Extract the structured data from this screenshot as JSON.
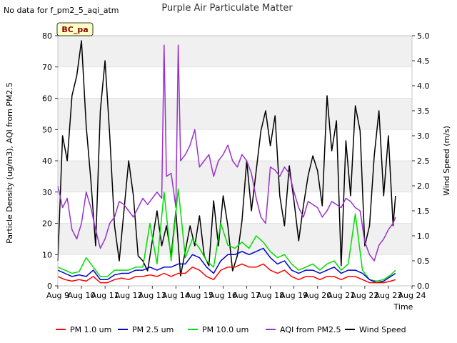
{
  "no_data_note": "No data for f_pm2_5_aqi_atm",
  "chart_data": {
    "type": "line",
    "title": "Purple Air Particulate Matter",
    "badge": "BC_pa",
    "xlabel": "Time",
    "ylabel_left": "Particle Density (ug/m3), AQI from PM2.5",
    "ylabel_right": "Wind Speed (m/s)",
    "x_ticks": [
      "Aug 9",
      "Aug 10",
      "Aug 11",
      "Aug 12",
      "Aug 13",
      "Aug 14",
      "Aug 15",
      "Aug 16",
      "Aug 17",
      "Aug 18",
      "Aug 19",
      "Aug 20",
      "Aug 21",
      "Aug 22",
      "Aug 23",
      "Aug 24"
    ],
    "xlim": [
      9,
      24
    ],
    "ylim_left": [
      0,
      80
    ],
    "yticks_left": [
      0,
      10,
      20,
      30,
      40,
      50,
      60,
      70,
      80
    ],
    "ylim_right": [
      0.0,
      5.0
    ],
    "yticks_right": [
      "0.0",
      "0.5",
      "1.0",
      "1.5",
      "2.0",
      "2.5",
      "3.0",
      "3.5",
      "4.0",
      "4.5",
      "5.0"
    ],
    "grid": true,
    "legend_position": "bottom",
    "series": [
      {
        "name": "PM 1.0 um",
        "color": "#ff0000",
        "axis": "left",
        "x": [
          9.0,
          9.3,
          9.6,
          9.9,
          10.2,
          10.5,
          10.8,
          11.1,
          11.4,
          11.7,
          12.0,
          12.3,
          12.6,
          12.9,
          13.2,
          13.5,
          13.8,
          14.1,
          14.4,
          14.7,
          15.0,
          15.3,
          15.6,
          15.9,
          16.2,
          16.5,
          16.8,
          17.1,
          17.4,
          17.7,
          18.0,
          18.3,
          18.6,
          18.9,
          19.2,
          19.5,
          19.8,
          20.1,
          20.4,
          20.7,
          21.0,
          21.3,
          21.6,
          21.9,
          22.2,
          22.5,
          22.8,
          23.1,
          23.3
        ],
        "values": [
          3,
          2,
          1.5,
          2,
          1.5,
          3,
          1,
          1,
          2,
          2.5,
          2,
          3,
          3,
          3.5,
          3,
          4,
          3,
          4,
          4,
          6,
          5,
          3,
          2,
          5,
          6,
          6,
          7,
          6,
          6,
          7,
          5,
          4,
          5,
          3,
          2,
          3,
          3,
          2,
          3,
          3,
          2,
          3,
          3,
          2,
          1,
          1,
          1,
          1.5,
          2
        ]
      },
      {
        "name": "PM 2.5 um",
        "color": "#0000cc",
        "axis": "left",
        "x": [
          9.0,
          9.3,
          9.6,
          9.9,
          10.2,
          10.5,
          10.8,
          11.1,
          11.4,
          11.7,
          12.0,
          12.3,
          12.6,
          12.9,
          13.2,
          13.5,
          13.8,
          14.1,
          14.4,
          14.7,
          15.0,
          15.3,
          15.6,
          15.9,
          16.2,
          16.5,
          16.8,
          17.1,
          17.4,
          17.7,
          18.0,
          18.3,
          18.6,
          18.9,
          19.2,
          19.5,
          19.8,
          20.1,
          20.4,
          20.7,
          21.0,
          21.3,
          21.6,
          21.9,
          22.2,
          22.5,
          22.8,
          23.1,
          23.3
        ],
        "values": [
          5,
          4,
          3,
          3.5,
          3,
          5,
          2,
          2,
          3.5,
          4,
          4,
          5,
          5,
          6,
          5,
          6,
          6,
          7,
          7,
          10,
          9,
          6,
          4,
          8,
          10,
          10,
          11,
          10,
          11,
          12,
          9,
          7,
          8,
          5,
          4,
          5,
          5,
          4,
          5,
          6,
          4,
          5,
          5,
          4,
          2,
          1,
          1.5,
          3,
          4
        ]
      },
      {
        "name": "PM 10.0 um",
        "color": "#00dd00",
        "axis": "left",
        "x": [
          9.0,
          9.3,
          9.6,
          9.9,
          10.2,
          10.5,
          10.8,
          11.1,
          11.4,
          11.7,
          12.0,
          12.3,
          12.6,
          12.9,
          13.2,
          13.5,
          13.8,
          14.1,
          14.4,
          14.7,
          15.0,
          15.3,
          15.6,
          15.9,
          16.2,
          16.5,
          16.8,
          17.1,
          17.4,
          17.7,
          18.0,
          18.3,
          18.6,
          18.9,
          19.2,
          19.5,
          19.8,
          20.1,
          20.4,
          20.7,
          21.0,
          21.3,
          21.6,
          21.9,
          22.2,
          22.5,
          22.8,
          23.1,
          23.3
        ],
        "values": [
          6,
          5,
          4,
          4.5,
          9,
          6,
          3,
          3,
          5,
          5,
          5,
          6,
          6,
          20,
          7,
          30,
          8,
          31,
          9,
          15,
          12,
          8,
          6,
          20,
          13,
          12,
          14,
          12,
          16,
          14,
          11,
          9,
          10,
          7,
          5,
          6,
          7,
          5,
          7,
          8,
          5,
          7,
          23,
          5,
          2,
          1.5,
          2,
          3.5,
          5
        ]
      },
      {
        "name": "AQI from PM2.5",
        "color": "#9932cc",
        "axis": "left",
        "x": [
          9.0,
          9.2,
          9.4,
          9.6,
          9.8,
          10.0,
          10.2,
          10.4,
          10.6,
          10.8,
          11.0,
          11.2,
          11.4,
          11.6,
          11.8,
          12.0,
          12.2,
          12.4,
          12.6,
          12.8,
          13.0,
          13.2,
          13.4,
          13.5,
          13.6,
          13.8,
          14.0,
          14.1,
          14.2,
          14.4,
          14.6,
          14.8,
          15.0,
          15.2,
          15.4,
          15.6,
          15.8,
          16.0,
          16.2,
          16.4,
          16.6,
          16.8,
          17.0,
          17.2,
          17.4,
          17.6,
          17.8,
          18.0,
          18.2,
          18.4,
          18.6,
          18.8,
          19.0,
          19.2,
          19.4,
          19.6,
          19.8,
          20.0,
          20.2,
          20.4,
          20.6,
          20.8,
          21.0,
          21.2,
          21.4,
          21.6,
          21.8,
          22.0,
          22.2,
          22.4,
          22.6,
          22.8,
          23.0,
          23.2,
          23.3
        ],
        "values": [
          32,
          25,
          28,
          18,
          15,
          20,
          30,
          25,
          18,
          12,
          15,
          20,
          22,
          27,
          26,
          24,
          22,
          25,
          28,
          26,
          28,
          30,
          28,
          77,
          35,
          36,
          25,
          77,
          40,
          42,
          45,
          50,
          38,
          40,
          42,
          35,
          40,
          42,
          45,
          40,
          38,
          42,
          40,
          36,
          28,
          22,
          20,
          38,
          37,
          35,
          38,
          36,
          30,
          25,
          22,
          27,
          26,
          25,
          22,
          24,
          27,
          26,
          25,
          28,
          27,
          25,
          24,
          14,
          10,
          8,
          13,
          15,
          18,
          20,
          22
        ]
      },
      {
        "name": "Wind Speed",
        "color": "#000000",
        "axis": "right",
        "x": [
          9.0,
          9.2,
          9.4,
          9.6,
          9.8,
          10.0,
          10.2,
          10.4,
          10.6,
          10.8,
          11.0,
          11.2,
          11.4,
          11.6,
          11.8,
          12.0,
          12.2,
          12.4,
          12.6,
          12.8,
          13.0,
          13.2,
          13.4,
          13.6,
          13.8,
          14.0,
          14.2,
          14.4,
          14.6,
          14.8,
          15.0,
          15.2,
          15.4,
          15.6,
          15.8,
          16.0,
          16.2,
          16.4,
          16.6,
          16.8,
          17.0,
          17.2,
          17.4,
          17.6,
          17.8,
          18.0,
          18.2,
          18.4,
          18.6,
          18.8,
          19.0,
          19.2,
          19.4,
          19.6,
          19.8,
          20.0,
          20.2,
          20.4,
          20.6,
          20.8,
          21.0,
          21.2,
          21.4,
          21.6,
          21.8,
          22.0,
          22.2,
          22.4,
          22.6,
          22.8,
          23.0,
          23.2,
          23.3
        ],
        "values": [
          0.5,
          3.0,
          2.5,
          3.8,
          4.2,
          4.9,
          3.2,
          2.1,
          0.8,
          3.5,
          4.5,
          3.0,
          1.2,
          0.5,
          1.5,
          2.5,
          1.8,
          0.6,
          0.5,
          0.3,
          0.9,
          1.5,
          0.8,
          1.2,
          0.6,
          1.5,
          0.2,
          0.7,
          1.2,
          0.8,
          1.4,
          0.6,
          0.4,
          1.7,
          0.8,
          1.8,
          1.2,
          0.3,
          0.6,
          1.3,
          2.5,
          1.5,
          2.3,
          3.1,
          3.5,
          2.8,
          3.4,
          1.8,
          1.2,
          2.4,
          1.7,
          0.9,
          1.6,
          2.2,
          2.6,
          2.3,
          1.6,
          3.8,
          2.7,
          3.3,
          0.4,
          2.9,
          1.8,
          3.6,
          3.1,
          0.8,
          1.2,
          2.6,
          3.5,
          1.8,
          3.0,
          1.2,
          1.8
        ]
      }
    ]
  }
}
